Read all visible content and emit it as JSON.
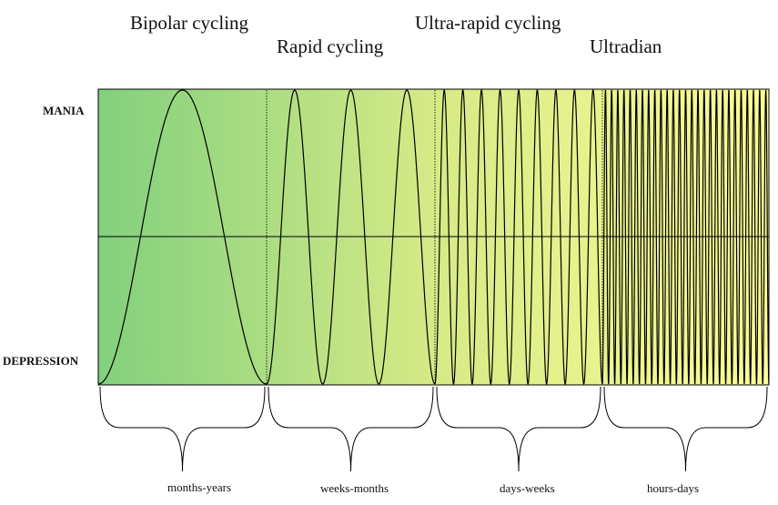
{
  "titles": {
    "bipolar": "Bipolar cycling",
    "rapid": "Rapid cycling",
    "ultra_rapid": "Ultra-rapid cycling",
    "ultradian": "Ultradian"
  },
  "axis": {
    "top": "MANIA",
    "bottom": "DEPRESSION"
  },
  "durations": {
    "bipolar": "months-years",
    "rapid": "weeks-months",
    "ultra_rapid": "days-weeks",
    "ultradian": "hours-days"
  },
  "colors": {
    "gradient_start": "#82d07e",
    "gradient_mid": "#d6ea86",
    "gradient_end": "#fbfc96",
    "line": "#000000"
  },
  "chart_data": {
    "type": "diagram",
    "segments": [
      {
        "label": "Bipolar cycling",
        "duration": "months-years",
        "cycles": 1
      },
      {
        "label": "Rapid cycling",
        "duration": "weeks-months",
        "cycles": 3
      },
      {
        "label": "Ultra-rapid cycling",
        "duration": "days-weeks",
        "cycles": 9
      },
      {
        "label": "Ultradian",
        "duration": "hours-days",
        "cycles": 27
      }
    ]
  }
}
